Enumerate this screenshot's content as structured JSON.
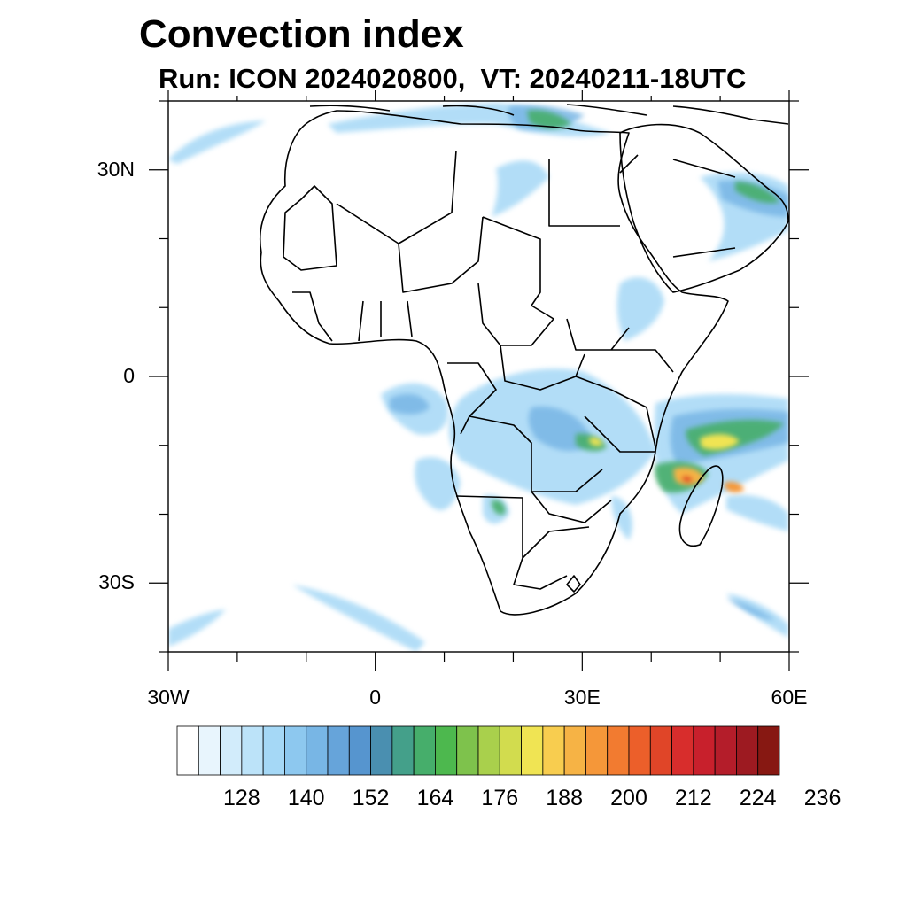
{
  "title": "Convection index",
  "subtitle": "Run: ICON 2024020800,  VT: 20240211-18UTC",
  "map": {
    "lat_labels": [
      {
        "text": "30N",
        "lat": 30
      },
      {
        "text": "0",
        "lat": 0
      },
      {
        "text": "30S",
        "lat": -30
      }
    ],
    "lon_labels": [
      {
        "text": "30W",
        "lon": -30
      },
      {
        "text": "0",
        "lon": 0
      },
      {
        "text": "30E",
        "lon": 30
      },
      {
        "text": "60E",
        "lon": 60
      }
    ],
    "lon_range": [
      -30,
      60
    ],
    "lat_range": [
      -40,
      40
    ]
  },
  "colorbar": {
    "levels": [
      "128",
      "140",
      "152",
      "164",
      "176",
      "188",
      "200",
      "212",
      "224",
      "236"
    ],
    "colors": [
      "#ffffff",
      "#e8f5fd",
      "#d2ecfb",
      "#bce3f9",
      "#a5d8f6",
      "#8dc8ef",
      "#78b6e5",
      "#66a4da",
      "#5695cf",
      "#4a8fb0",
      "#44a08a",
      "#46ae6b",
      "#4db84e",
      "#7ec24c",
      "#a9d04c",
      "#d2dc4e",
      "#f0e453",
      "#f8cd4f",
      "#f6b345",
      "#f59739",
      "#f27b30",
      "#ec5f2a",
      "#e04528",
      "#d82d2c",
      "#c8202c",
      "#b41d2a",
      "#9d1a21",
      "#871812"
    ]
  }
}
